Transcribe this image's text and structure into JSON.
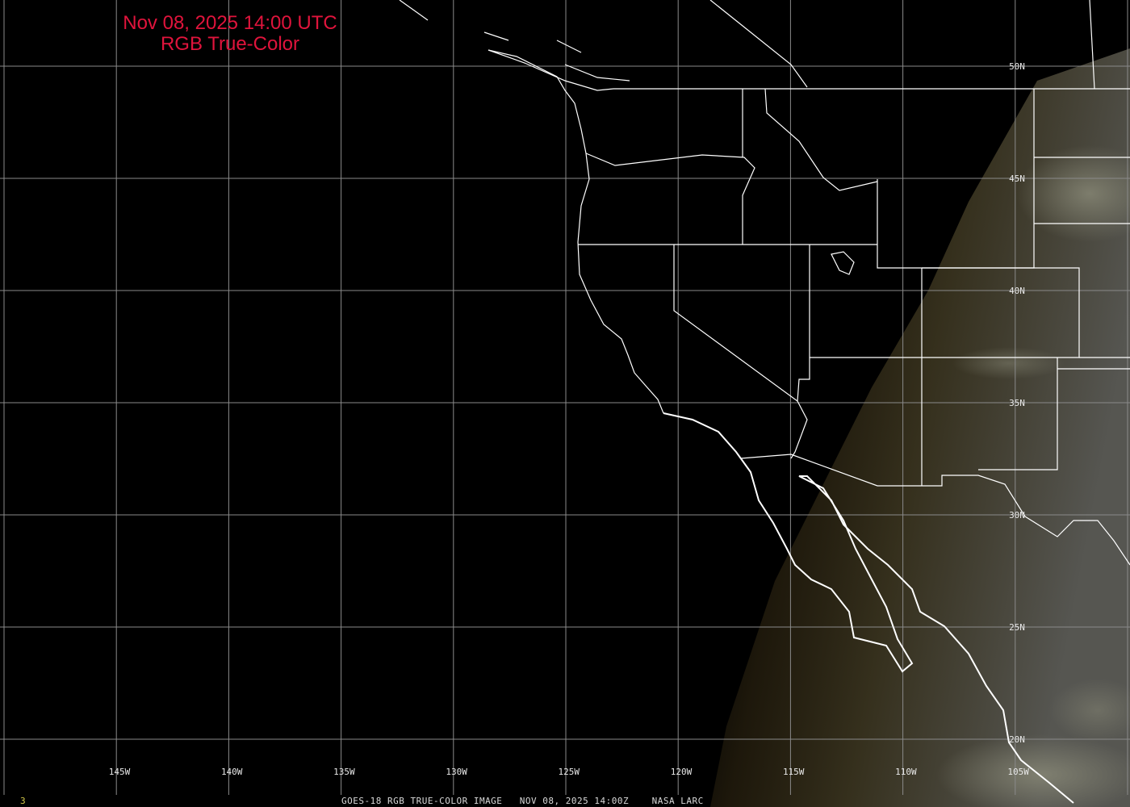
{
  "title": {
    "line1": "Nov 08, 2025 14:00 UTC",
    "line2": "RGB True-Color"
  },
  "colors": {
    "title": "#e0143c",
    "grid": "#8a8a8a",
    "borders": "#ffffff",
    "frame_number": "#d4c84a"
  },
  "lon_labels": [
    "145W",
    "140W",
    "135W",
    "130W",
    "125W",
    "120W",
    "115W",
    "110W",
    "105W"
  ],
  "lat_labels": [
    "50N",
    "45N",
    "40N",
    "35N",
    "30N",
    "25N",
    "20N"
  ],
  "footer": {
    "frame_number": "3",
    "caption": "GOES-18 RGB TRUE-COLOR IMAGE   NOV 08, 2025 14:00Z    NASA LARC"
  }
}
